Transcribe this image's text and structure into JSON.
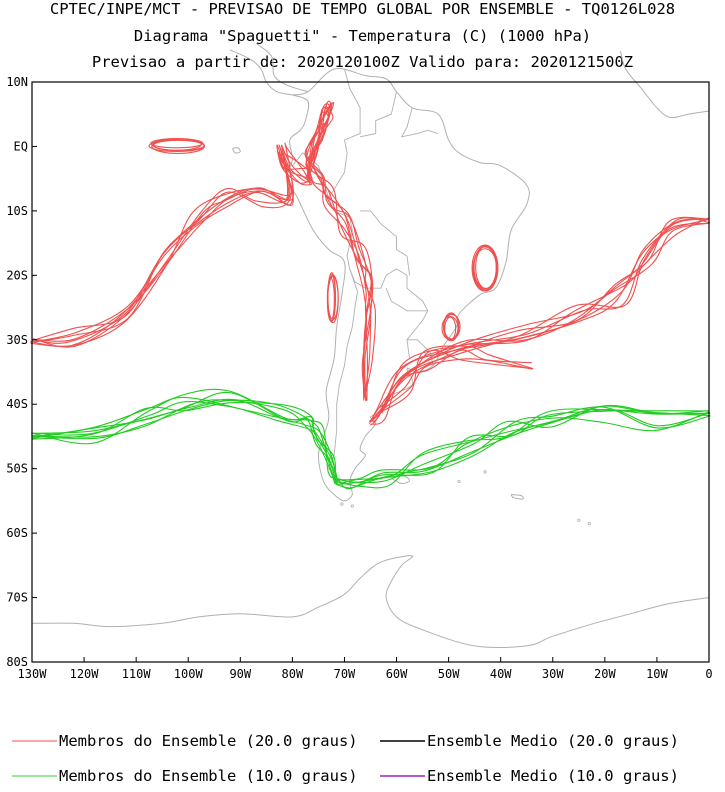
{
  "chart_data": {
    "type": "line",
    "title_lines": [
      "CPTEC/INPE/MCT - PREVISAO DE TEMPO GLOBAL POR ENSEMBLE - TQ0126L028",
      "Diagrama \"Spaguetti\" - Temperatura (C) (1000 hPa)",
      "Previsao a partir de: 2020120100Z  Valido para: 2020121500Z"
    ],
    "x_ticks": [
      "130W",
      "120W",
      "110W",
      "100W",
      "90W",
      "80W",
      "70W",
      "60W",
      "50W",
      "40W",
      "30W",
      "20W",
      "10W",
      "0"
    ],
    "y_ticks": [
      "10N",
      "EQ",
      "10S",
      "20S",
      "30S",
      "40S",
      "50S",
      "60S",
      "70S",
      "80S"
    ],
    "xlim": [
      -130,
      0
    ],
    "ylim": [
      -80,
      10
    ],
    "legend": [
      {
        "label": "Membros do Ensemble (20.0 graus)",
        "color": "#f05050"
      },
      {
        "label": "Ensemble Medio (20.0 graus)",
        "color": "#000000"
      },
      {
        "label": "Membros do Ensemble (10.0 graus)",
        "color": "#32cd32"
      },
      {
        "label": "Ensemble Medio (10.0 graus)",
        "color": "#a020c0"
      }
    ],
    "colors": {
      "land": "#b0b0b0",
      "isoline_20": "#f05050",
      "isoline_10": "#22cc22"
    },
    "series": [
      {
        "name": "isotherm_20C_pacific",
        "color": "#f05050",
        "members": 8,
        "lon": [
          -130,
          -122,
          -112,
          -104,
          -98,
          -92,
          -86,
          -81,
          -80.5,
          -82,
          -81,
          -78,
          -76.5
        ],
        "lat": [
          -30,
          -29.5,
          -26,
          -18,
          -11,
          -8,
          -8,
          -8,
          -4,
          -1,
          -2,
          -5,
          -5.5
        ]
      },
      {
        "name": "isotherm_20C_andes_coast",
        "color": "#f05050",
        "members": 8,
        "lon": [
          -77,
          -75,
          -73.5,
          -73,
          -75,
          -76.5,
          -75,
          -73,
          -70,
          -67,
          -65.5,
          -65,
          -65.5,
          -66
        ],
        "lat": [
          -5,
          1,
          5,
          6,
          2,
          -2,
          -5,
          -8,
          -12,
          -17,
          -21,
          -26,
          -33,
          -39
        ]
      },
      {
        "name": "isotherm_20C_atlantic",
        "color": "#f05050",
        "members": 8,
        "lon": [
          -65,
          -63,
          -58,
          -48,
          -36,
          -25,
          -17,
          -12,
          -7,
          0
        ],
        "lat": [
          -43,
          -41,
          -34.5,
          -31.5,
          -28.5,
          -26,
          -23,
          -17,
          -13,
          -11.5
        ]
      },
      {
        "name": "isotherm_20C_atlantic_south",
        "color": "#f05050",
        "members": 4,
        "lon": [
          -63,
          -58,
          -54,
          -47,
          -42,
          -34
        ],
        "lat": [
          -41,
          -37,
          -33,
          -32,
          -32.5,
          -34
        ]
      },
      {
        "name": "isotherm_10C_pacific",
        "color": "#22cc22",
        "members": 8,
        "lon": [
          -130,
          -118,
          -108,
          -100,
          -92,
          -82,
          -77,
          -75,
          -73,
          -71.5
        ],
        "lat": [
          -45,
          -45,
          -42,
          -40,
          -39.5,
          -41,
          -42.5,
          -45,
          -49,
          -52
        ]
      },
      {
        "name": "isotherm_10C_atlantic",
        "color": "#22cc22",
        "members": 8,
        "lon": [
          -71.5,
          -68,
          -62,
          -54,
          -46,
          -38,
          -30,
          -20,
          -10,
          0
        ],
        "lat": [
          -52,
          -53,
          -51,
          -49,
          -46.5,
          -43.5,
          -42,
          -41.5,
          -42.5,
          -41.5
        ]
      }
    ],
    "closed_contours_20C": [
      {
        "lon": -102,
        "lat": 0.3,
        "rx": 5,
        "ry": 1
      },
      {
        "lon": -72.5,
        "lat": -23.5,
        "rx": 0.9,
        "ry": 3.5
      },
      {
        "lon": -49.5,
        "lat": -28,
        "rx": 1.3,
        "ry": 2
      },
      {
        "lon": -43,
        "lat": -19,
        "rx": 2.2,
        "ry": 3.5
      }
    ]
  }
}
